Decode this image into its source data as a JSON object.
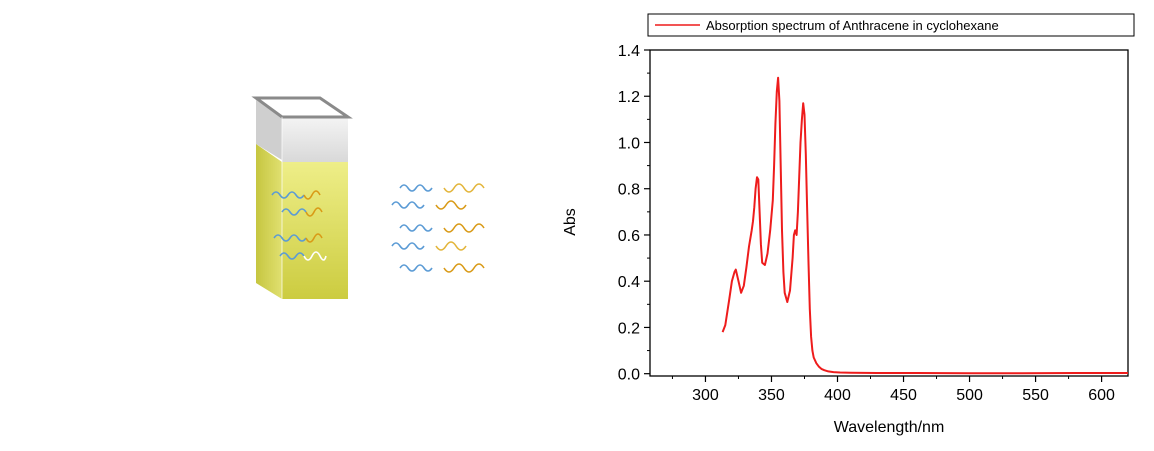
{
  "colors": {
    "spectrum": "#ee1c1c",
    "liquid": "#d9d94a",
    "liquid_light": "#ecec7a",
    "glass": "#e4e4e4",
    "wave_blue": "#5b9bd5",
    "wave_orange": "#d99a16"
  },
  "cuvette_illustration": {
    "icon": "cuvette-with-anthracene-solution-icon",
    "emitted_waves_icon": "light-waves-icon"
  },
  "chart_data": {
    "type": "line",
    "title": "",
    "xlabel": "Wavelength/nm",
    "ylabel": "Abs",
    "xlim": [
      258,
      620
    ],
    "ylim": [
      -0.01,
      1.4
    ],
    "x_ticks": [
      300,
      350,
      400,
      450,
      500,
      550,
      600
    ],
    "y_ticks": [
      0.0,
      0.2,
      0.4,
      0.6,
      0.8,
      1.0,
      1.2,
      1.4
    ],
    "x_tick_labels": [
      "300",
      "350",
      "400",
      "450",
      "500",
      "550",
      "600"
    ],
    "y_tick_labels": [
      "0.0",
      "0.2",
      "0.4",
      "0.6",
      "0.8",
      "1.0",
      "1.2",
      "1.4"
    ],
    "grid": false,
    "legend_position": "top-right",
    "series": [
      {
        "name": "Absorption spectrum of Anthracene in cyclohexane",
        "color": "#ee1c1c",
        "x": [
          313,
          315,
          318,
          320,
          322,
          323,
          325,
          327,
          329,
          331,
          333,
          335,
          336,
          337,
          338,
          339,
          340,
          341,
          342,
          343,
          345,
          347,
          349,
          351,
          352,
          353,
          354,
          355,
          356,
          357,
          358,
          359,
          360,
          362,
          364,
          366,
          367,
          368,
          369,
          370,
          371,
          372,
          373,
          374,
          375,
          376,
          377,
          378,
          379,
          380,
          381,
          382,
          384,
          386,
          388,
          390,
          393,
          397,
          402,
          410,
          430,
          460,
          500,
          540,
          580,
          620
        ],
        "y": [
          0.18,
          0.21,
          0.32,
          0.4,
          0.44,
          0.45,
          0.4,
          0.35,
          0.38,
          0.46,
          0.55,
          0.62,
          0.66,
          0.72,
          0.8,
          0.85,
          0.84,
          0.7,
          0.56,
          0.48,
          0.47,
          0.52,
          0.62,
          0.75,
          0.9,
          1.08,
          1.22,
          1.28,
          1.18,
          0.9,
          0.62,
          0.44,
          0.35,
          0.31,
          0.36,
          0.5,
          0.6,
          0.62,
          0.6,
          0.7,
          0.85,
          1.0,
          1.1,
          1.17,
          1.12,
          0.95,
          0.72,
          0.48,
          0.28,
          0.16,
          0.1,
          0.07,
          0.045,
          0.03,
          0.02,
          0.015,
          0.01,
          0.007,
          0.005,
          0.004,
          0.003,
          0.003,
          0.002,
          0.002,
          0.003,
          0.003
        ]
      }
    ]
  }
}
